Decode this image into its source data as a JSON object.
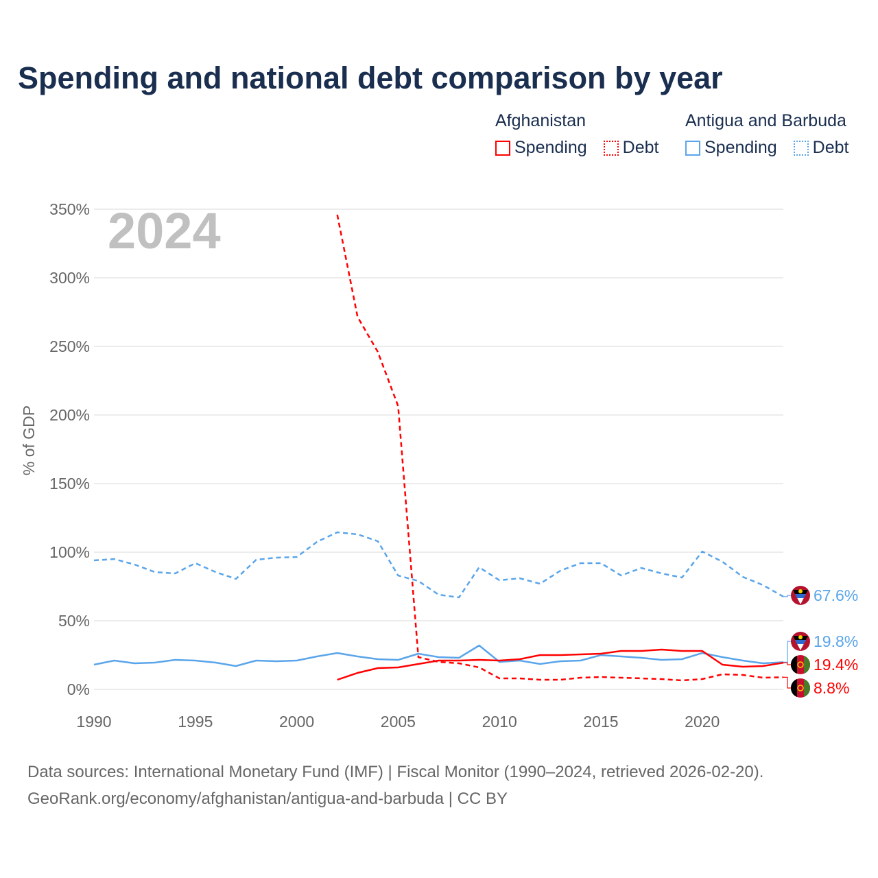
{
  "chart_data": {
    "type": "line",
    "title": "Spending and national debt comparison by year",
    "ylabel": "% of GDP",
    "xlabel": "",
    "xlim": [
      1990,
      2024
    ],
    "ylim": [
      0,
      350
    ],
    "grid": true,
    "year_watermark": "2024",
    "x_ticks": [
      1990,
      1995,
      2000,
      2005,
      2010,
      2015,
      2020
    ],
    "x_tick_labels": [
      "1990",
      "1995",
      "2000",
      "2005",
      "2010",
      "2015",
      "2020"
    ],
    "y_ticks": [
      0,
      50,
      100,
      150,
      200,
      250,
      300,
      350
    ],
    "y_tick_labels": [
      "0%",
      "50%",
      "100%",
      "150%",
      "200%",
      "250%",
      "300%",
      "350%"
    ],
    "legend": {
      "placement": "top-right",
      "groups": [
        {
          "country": "Afghanistan",
          "items": [
            "Spending",
            "Debt"
          ]
        },
        {
          "country": "Antigua and Barbuda",
          "items": [
            "Spending",
            "Debt"
          ]
        }
      ]
    },
    "series": [
      {
        "name": "Antigua and Barbuda Debt",
        "color": "#5aa5ea",
        "dash": true,
        "start": 1990,
        "values": [
          94,
          95,
          91,
          85.5,
          84.5,
          92,
          85.5,
          80.5,
          94.5,
          96,
          96.5,
          107.5,
          114.5,
          113,
          108,
          83,
          79,
          69,
          67,
          89,
          79.5,
          81,
          77,
          86.5,
          92,
          92,
          83,
          88.5,
          84.5,
          81.5,
          100.5,
          93,
          82,
          76,
          67.6
        ],
        "end_label": "67.6%"
      },
      {
        "name": "Antigua and Barbuda Spending",
        "color": "#5aa5ea",
        "dash": false,
        "start": 1990,
        "values": [
          18,
          21,
          19,
          19.5,
          21.5,
          21,
          19.5,
          17,
          21,
          20.5,
          21,
          24,
          26.5,
          24,
          22,
          21.5,
          26,
          23.5,
          23,
          32,
          20,
          21,
          18.5,
          20.5,
          21,
          25,
          24,
          23,
          21.5,
          22,
          26.5,
          23.5,
          21,
          19,
          19.8
        ],
        "end_label": "19.8%"
      },
      {
        "name": "Afghanistan Spending",
        "color": "#ff0000",
        "dash": false,
        "start": 2002,
        "values": [
          7,
          12,
          15.5,
          16,
          18.5,
          21,
          21,
          21.5,
          21,
          22,
          25,
          25,
          25.5,
          26,
          28,
          28,
          29,
          28,
          28,
          18,
          16.5,
          17,
          19.4
        ],
        "end_label": "19.4%"
      },
      {
        "name": "Afghanistan Debt",
        "color": "#ff0000",
        "dash": true,
        "start": 2002,
        "values": [
          346,
          271.5,
          246,
          206.5,
          23.5,
          20,
          19,
          16,
          8,
          8,
          7,
          7,
          8.5,
          9,
          8.5,
          8,
          7.5,
          6.5,
          7.5,
          11,
          10.5,
          8.5,
          8.8
        ],
        "end_label": "8.8%"
      }
    ]
  },
  "source": {
    "line1": "Data sources: International Monetary Fund (IMF) | Fiscal Monitor (1990–2024, retrieved 2026-02-20).",
    "line2": "GeoRank.org/economy/afghanistan/antigua-and-barbuda | CC BY"
  }
}
